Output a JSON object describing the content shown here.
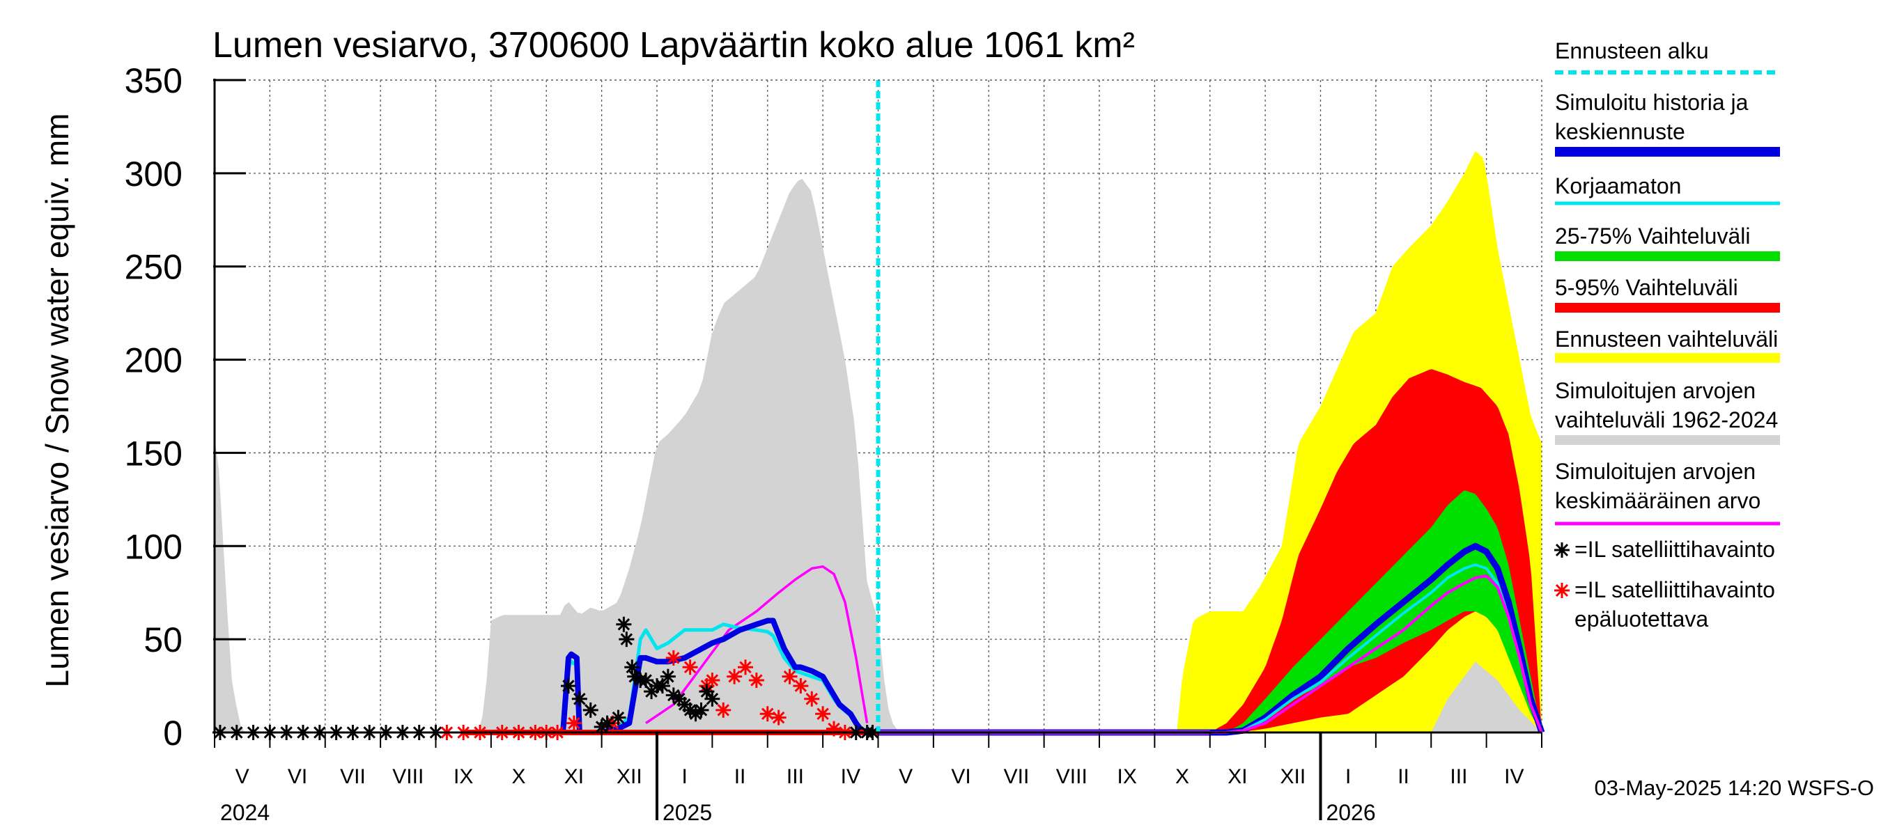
{
  "chart_data": {
    "type": "area",
    "title": "Lumen vesiarvo, 3700600 Lapväärtin koko alue 1061 km²",
    "ylabel": "Lumen vesiarvo / Snow water equiv.    mm",
    "ylim": [
      0,
      350
    ],
    "yticks": [
      0,
      50,
      100,
      150,
      200,
      250,
      300,
      350
    ],
    "grid": true,
    "legend_position": "right",
    "month_labels": [
      "V",
      "VI",
      "VII",
      "VIII",
      "IX",
      "X",
      "XI",
      "XII",
      "I",
      "II",
      "III",
      "IV",
      "V",
      "VI",
      "VII",
      "VIII",
      "IX",
      "X",
      "XI",
      "XII",
      "I",
      "II",
      "III",
      "IV"
    ],
    "year_labels": [
      "2024",
      "2025",
      "2026"
    ],
    "forecast_start_month": 12.0,
    "timestamp": "03-May-2025 14:20 WSFS-O",
    "legend": [
      {
        "label": "Ennusteen alku",
        "color": "#00e5ee",
        "style": "dashed"
      },
      {
        "label": "Simuloitu historia ja keskiennuste",
        "color": "#0000e0",
        "style": "thick"
      },
      {
        "label": "Korjaamaton",
        "color": "#00e5ee",
        "style": "line"
      },
      {
        "label": "25-75% Vaihteluväli",
        "color": "#00e000",
        "style": "thick"
      },
      {
        "label": "5-95% Vaihteluväli",
        "color": "#ff0000",
        "style": "thick"
      },
      {
        "label": "Ennusteen vaihteluväli",
        "color": "#ffff00",
        "style": "thick"
      },
      {
        "label": "Simuloitujen arvojen vaihteluväli 1962-2024",
        "color": "#d3d3d3",
        "style": "thick"
      },
      {
        "label": "Simuloitujen arvojen keskimääräinen arvo",
        "color": "#ff00ff",
        "style": "line"
      },
      {
        "label": "=IL satelliittihavainto",
        "color": "#000000",
        "style": "marker"
      },
      {
        "label": "=IL satelliittihavainto epäluotettava",
        "color": "#ff0000",
        "style": "marker"
      }
    ],
    "series": {
      "historical_range_max": {
        "x": [
          0,
          0.05,
          0.3,
          0.45,
          0.55,
          4.8,
          4.9,
          5.0,
          5.2,
          5.5,
          6.0,
          6.3,
          6.35,
          6.6,
          6.7,
          6.8,
          7.0,
          7.3,
          7.5,
          7.7,
          7.9,
          8.0,
          8.2,
          8.5,
          8.8,
          9.0,
          9.2,
          9.4,
          9.6,
          9.8,
          10.0,
          10.2,
          10.4,
          10.6,
          10.8,
          11.0,
          11.2,
          11.4,
          11.6,
          11.8,
          12.0,
          12.1,
          12.2,
          12.3,
          12.5
        ],
        "y": [
          158,
          155,
          30,
          5,
          0,
          0,
          20,
          60,
          63,
          63,
          63,
          63,
          72,
          63,
          65,
          67,
          65,
          70,
          88,
          110,
          140,
          155,
          160,
          170,
          185,
          215,
          230,
          235,
          240,
          245,
          260,
          275,
          290,
          298,
          290,
          260,
          230,
          200,
          160,
          80,
          60,
          30,
          10,
          2,
          0
        ]
      },
      "historical_range_min": {
        "x": [
          0,
          22,
          22.3,
          22.8,
          23.2,
          23.6,
          24
        ],
        "y": [
          0,
          0,
          18,
          38,
          28,
          12,
          0
        ]
      },
      "hist_mean": {
        "x": [
          7.8,
          8.3,
          8.8,
          9.3,
          9.8,
          10.2,
          10.5,
          10.8,
          11.0,
          11.2,
          11.4,
          11.6,
          11.8
        ],
        "y": [
          5,
          15,
          35,
          55,
          65,
          75,
          82,
          88,
          89,
          85,
          70,
          40,
          5
        ]
      },
      "simulated": {
        "x": [
          4.5,
          6.3,
          6.4,
          6.45,
          6.55,
          6.6,
          6.7,
          7.0,
          7.3,
          7.5,
          7.7,
          7.8,
          8.0,
          8.2,
          8.5,
          9.0,
          9.2,
          9.5,
          9.8,
          10.0,
          10.1,
          10.3,
          10.5,
          10.6,
          10.8,
          11.0,
          11.2,
          11.3,
          11.5,
          11.6,
          11.7,
          12.0
        ],
        "y": [
          0,
          0,
          40,
          42,
          40,
          0,
          0,
          0,
          2,
          5,
          40,
          40,
          38,
          38,
          40,
          48,
          50,
          55,
          58,
          60,
          60,
          45,
          35,
          35,
          33,
          30,
          20,
          15,
          10,
          5,
          1,
          0
        ]
      },
      "uncorrected": {
        "x": [
          4.5,
          6.3,
          6.4,
          6.45,
          6.55,
          6.6,
          6.7,
          7.0,
          7.3,
          7.5,
          7.7,
          7.8,
          8.0,
          8.2,
          8.5,
          9.0,
          9.2,
          9.5,
          9.8,
          10.0,
          10.1,
          10.3,
          10.5,
          10.6,
          10.8,
          11.0,
          11.2,
          11.3,
          11.5,
          11.6,
          11.7,
          12.0
        ],
        "y": [
          0,
          0,
          35,
          38,
          36,
          0,
          0,
          0,
          3,
          8,
          50,
          55,
          45,
          48,
          55,
          55,
          58,
          56,
          55,
          54,
          52,
          40,
          33,
          32,
          30,
          28,
          18,
          14,
          9,
          5,
          2,
          0
        ]
      },
      "forecast_envelope_max": {
        "x": [
          17.4,
          17.5,
          17.7,
          17.8,
          18.0,
          18.3,
          18.6,
          18.9,
          19.3,
          19.6,
          20.0,
          20.3,
          20.6,
          21.0,
          21.3,
          21.6,
          22.0,
          22.3,
          22.6,
          22.8,
          22.95,
          23.05,
          23.2,
          23.4,
          23.6,
          23.8,
          24
        ],
        "y": [
          0,
          30,
          60,
          62,
          65,
          65,
          65,
          78,
          100,
          155,
          175,
          195,
          215,
          225,
          250,
          260,
          272,
          285,
          300,
          312,
          308,
          290,
          260,
          230,
          200,
          170,
          155
        ]
      },
      "p5_95_max": {
        "x": [
          18.0,
          18.3,
          18.6,
          19.0,
          19.3,
          19.6,
          20.0,
          20.3,
          20.6,
          21.0,
          21.3,
          21.6,
          22.0,
          22.3,
          22.6,
          22.9,
          23.2,
          23.4,
          23.6,
          23.8,
          24
        ],
        "y": [
          0,
          5,
          15,
          35,
          60,
          95,
          120,
          140,
          155,
          165,
          180,
          190,
          195,
          192,
          188,
          185,
          175,
          160,
          130,
          90,
          0
        ]
      },
      "p25_75_max": {
        "x": [
          18.3,
          18.6,
          19.0,
          19.5,
          20.0,
          20.5,
          21.0,
          21.5,
          22.0,
          22.3,
          22.6,
          22.8,
          23.0,
          23.2,
          23.4,
          23.6,
          23.8,
          24
        ],
        "y": [
          0,
          5,
          18,
          35,
          50,
          65,
          80,
          95,
          110,
          122,
          130,
          128,
          120,
          110,
          90,
          60,
          30,
          0
        ]
      },
      "p25_75_min": {
        "x": [
          18.3,
          18.6,
          19.0,
          19.5,
          20.0,
          20.5,
          21.0,
          21.5,
          22.0,
          22.3,
          22.6,
          22.8,
          23.0,
          23.2,
          23.4,
          23.6,
          23.8,
          24
        ],
        "y": [
          0,
          1,
          8,
          18,
          25,
          35,
          40,
          48,
          55,
          60,
          65,
          65,
          62,
          55,
          40,
          25,
          10,
          0
        ]
      },
      "p5_95_min": {
        "x": [
          18.5,
          19.0,
          19.5,
          20.0,
          20.5,
          21.0,
          21.5,
          22.0,
          22.3,
          22.6,
          22.8,
          23.0,
          23.2,
          23.4,
          23.6,
          23.8,
          24
        ],
        "y": [
          0,
          2,
          5,
          8,
          10,
          20,
          30,
          45,
          55,
          62,
          65,
          62,
          55,
          45,
          30,
          10,
          0
        ]
      },
      "forecast_mean": {
        "x": [
          12.0,
          18.0,
          18.3,
          18.6,
          19.0,
          19.5,
          20.0,
          20.5,
          21.0,
          21.5,
          22.0,
          22.3,
          22.6,
          22.8,
          23.0,
          23.2,
          23.4,
          23.6,
          23.8,
          24
        ],
        "y": [
          0,
          0,
          0,
          1,
          8,
          20,
          30,
          45,
          58,
          70,
          82,
          90,
          97,
          100,
          97,
          88,
          70,
          45,
          18,
          0
        ]
      },
      "forecast_uncorrected": {
        "x": [
          12.0,
          18.0,
          18.3,
          18.6,
          19.0,
          19.5,
          20.0,
          20.5,
          21.0,
          21.5,
          22.0,
          22.3,
          22.6,
          22.8,
          23.0,
          23.2,
          23.4,
          23.6,
          23.8,
          24
        ],
        "y": [
          0,
          0,
          0,
          1,
          7,
          18,
          27,
          40,
          52,
          64,
          75,
          83,
          88,
          90,
          88,
          80,
          62,
          40,
          15,
          0
        ]
      },
      "forecast_hist_mean": {
        "x": [
          12.0,
          18.0,
          18.3,
          18.6,
          19.0,
          19.5,
          20.0,
          20.5,
          21.0,
          21.5,
          22.0,
          22.3,
          22.6,
          22.8,
          23.0,
          23.2,
          23.4,
          23.6,
          23.8,
          24
        ],
        "y": [
          0,
          0,
          0,
          1,
          5,
          15,
          25,
          35,
          45,
          55,
          68,
          75,
          80,
          83,
          84,
          78,
          62,
          40,
          15,
          0
        ]
      },
      "satellite_obs": {
        "x": [
          0.1,
          0.4,
          0.7,
          1.0,
          1.3,
          1.6,
          1.9,
          2.2,
          2.5,
          2.8,
          3.1,
          3.4,
          3.7,
          4.0,
          6.4,
          6.6,
          6.8,
          7.0,
          7.1,
          7.3,
          7.4,
          7.45,
          7.55,
          7.6,
          7.7,
          7.8,
          7.9,
          8.0,
          8.1,
          8.2,
          8.3,
          8.4,
          8.5,
          8.6,
          8.7,
          8.8,
          8.9,
          9.0,
          11.6,
          11.8,
          11.9
        ],
        "y": [
          0,
          0,
          0,
          0,
          0,
          0,
          0,
          0,
          0,
          0,
          0,
          0,
          0,
          0,
          25,
          18,
          12,
          3,
          5,
          8,
          58,
          50,
          35,
          30,
          28,
          28,
          22,
          25,
          25,
          30,
          20,
          18,
          15,
          12,
          10,
          12,
          22,
          18,
          0,
          0,
          0
        ]
      },
      "satellite_obs_unreliable": {
        "x": [
          4.2,
          4.5,
          4.8,
          5.2,
          5.5,
          5.8,
          6.0,
          6.2,
          6.5,
          7.2,
          8.3,
          8.6,
          8.9,
          9.0,
          9.2,
          9.4,
          9.6,
          9.8,
          10.0,
          10.2,
          10.4,
          10.6,
          10.8,
          11.0,
          11.2,
          11.4
        ],
        "y": [
          0,
          0,
          0,
          0,
          0,
          0,
          0,
          0,
          5,
          5,
          40,
          35,
          25,
          28,
          12,
          30,
          35,
          28,
          10,
          8,
          30,
          25,
          18,
          10,
          2,
          0
        ]
      }
    }
  }
}
